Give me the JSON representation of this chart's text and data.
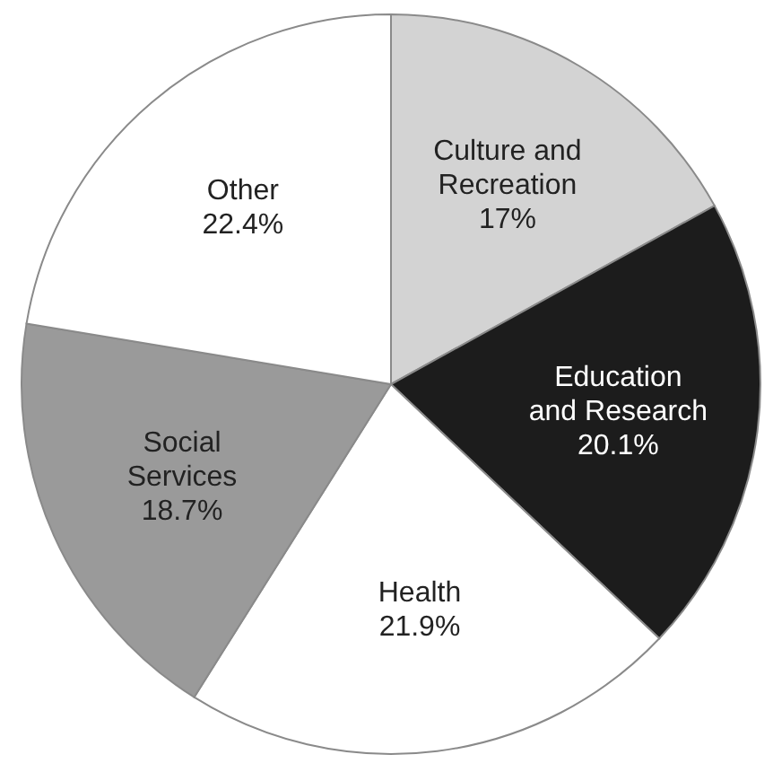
{
  "chart_data": {
    "type": "pie",
    "categories": [
      "Culture and Recreation",
      "Education and Research",
      "Health",
      "Social Services",
      "Other"
    ],
    "values": [
      17,
      20.1,
      21.9,
      18.7,
      22.4
    ],
    "colors": [
      "#d3d3d3",
      "#1c1c1c",
      "#ffffff",
      "#9a9a9a",
      "#ffffff"
    ],
    "value_labels": [
      "17%",
      "20.1%",
      "21.9%",
      "18.7%",
      "22.4%"
    ]
  }
}
